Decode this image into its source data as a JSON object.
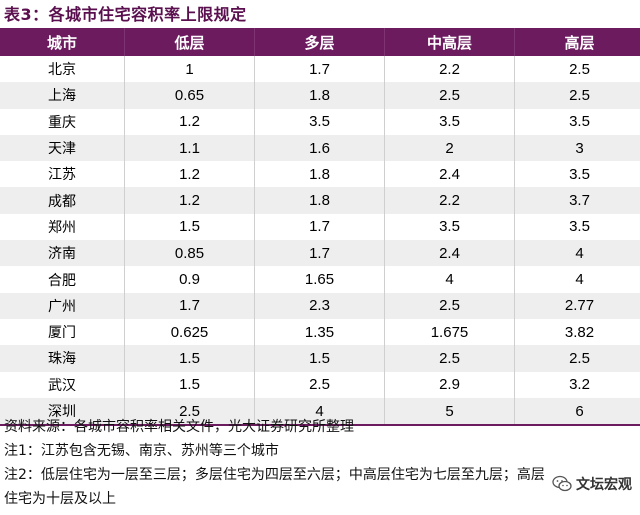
{
  "title": "表3：各城市住宅容积率上限规定",
  "table": {
    "headers": [
      "城市",
      "低层",
      "多层",
      "中高层",
      "高层"
    ],
    "rows": [
      [
        "北京",
        "1",
        "1.7",
        "2.2",
        "2.5"
      ],
      [
        "上海",
        "0.65",
        "1.8",
        "2.5",
        "2.5"
      ],
      [
        "重庆",
        "1.2",
        "3.5",
        "3.5",
        "3.5"
      ],
      [
        "天津",
        "1.1",
        "1.6",
        "2",
        "3"
      ],
      [
        "江苏",
        "1.2",
        "1.8",
        "2.4",
        "3.5"
      ],
      [
        "成都",
        "1.2",
        "1.8",
        "2.2",
        "3.7"
      ],
      [
        "郑州",
        "1.5",
        "1.7",
        "3.5",
        "3.5"
      ],
      [
        "济南",
        "0.85",
        "1.7",
        "2.4",
        "4"
      ],
      [
        "合肥",
        "0.9",
        "1.65",
        "4",
        "4"
      ],
      [
        "广州",
        "1.7",
        "2.3",
        "2.5",
        "2.77"
      ],
      [
        "厦门",
        "0.625",
        "1.35",
        "1.675",
        "3.82"
      ],
      [
        "珠海",
        "1.5",
        "1.5",
        "2.5",
        "2.5"
      ],
      [
        "武汉",
        "1.5",
        "2.5",
        "2.9",
        "3.2"
      ],
      [
        "深圳",
        "2.5",
        "4",
        "5",
        "6"
      ]
    ]
  },
  "notes": {
    "source": "资料来源：各城市容积率相关文件，光大证券研究所整理",
    "note1": "注1：江苏包含无锡、南京、苏州等三个城市",
    "note2": "注2：低层住宅为一层至三层；多层住宅为四层至六层；中高层住宅为七层至九层；高层",
    "note2_cont": "住宅为十层及以上"
  },
  "watermark": {
    "text": "文坛宏观",
    "icon": "wechat-icon"
  }
}
